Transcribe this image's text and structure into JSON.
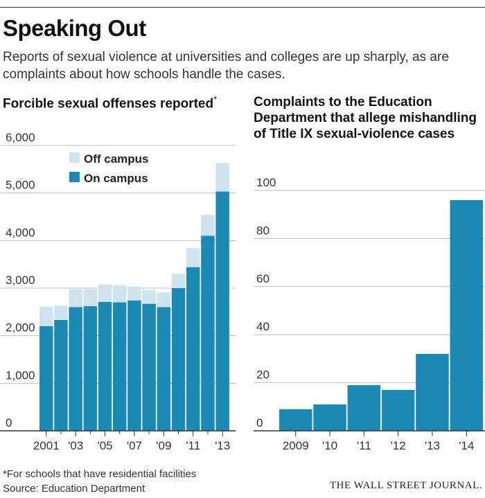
{
  "header": {
    "title": "Speaking Out",
    "subtitle": "Reports of sexual violence at universities and colleges are up sharply, as are complaints about how schools handle the cases."
  },
  "colors": {
    "on_campus": "#1a8ab5",
    "off_campus": "#cde3ee",
    "grid": "#bbbbbb",
    "axis": "#333333"
  },
  "chart_data": [
    {
      "type": "bar",
      "stacked": true,
      "title": "Forcible sexual offenses reported",
      "title_mark": "*",
      "categories": [
        "2001",
        "2002",
        "2003",
        "2004",
        "2005",
        "2006",
        "2007",
        "2008",
        "2009",
        "2010",
        "2011",
        "2012",
        "2013"
      ],
      "tick_labels": [
        "2001",
        "",
        "'03",
        "",
        "'05",
        "",
        "'07",
        "",
        "'09",
        "",
        "'11",
        "",
        "'13"
      ],
      "series": [
        {
          "name": "On campus",
          "values": [
            2200,
            2330,
            2600,
            2620,
            2710,
            2700,
            2740,
            2670,
            2600,
            3000,
            3440,
            4100,
            5030
          ]
        },
        {
          "name": "Off campus",
          "values": [
            410,
            300,
            380,
            360,
            370,
            360,
            290,
            290,
            310,
            300,
            400,
            440,
            600
          ]
        }
      ],
      "legend": [
        "Off campus",
        "On campus"
      ],
      "ylim": [
        0,
        6000
      ],
      "yticks": [
        0,
        1000,
        2000,
        3000,
        4000,
        5000,
        6000
      ],
      "ytick_labels": [
        "0",
        "1,000",
        "2,000",
        "3,000",
        "4,000",
        "5,000",
        "6,000"
      ],
      "grid": true
    },
    {
      "type": "bar",
      "title": "Complaints to the Education Department that allege mishandling of Title IX sexual-violence cases",
      "categories": [
        "2009",
        "'10",
        "'11",
        "'12",
        "'13",
        "'14"
      ],
      "values": [
        9,
        11,
        19,
        17,
        32,
        96
      ],
      "ylim": [
        0,
        100
      ],
      "yticks": [
        0,
        20,
        40,
        60,
        80,
        100
      ],
      "ytick_labels": [
        "0",
        "20",
        "40",
        "60",
        "80",
        "100"
      ],
      "grid": true
    }
  ],
  "footnote": {
    "note": "*For schools that have residential facilities",
    "source": "Source: Education Department"
  },
  "brand": "THE WALL STREET JOURNAL."
}
